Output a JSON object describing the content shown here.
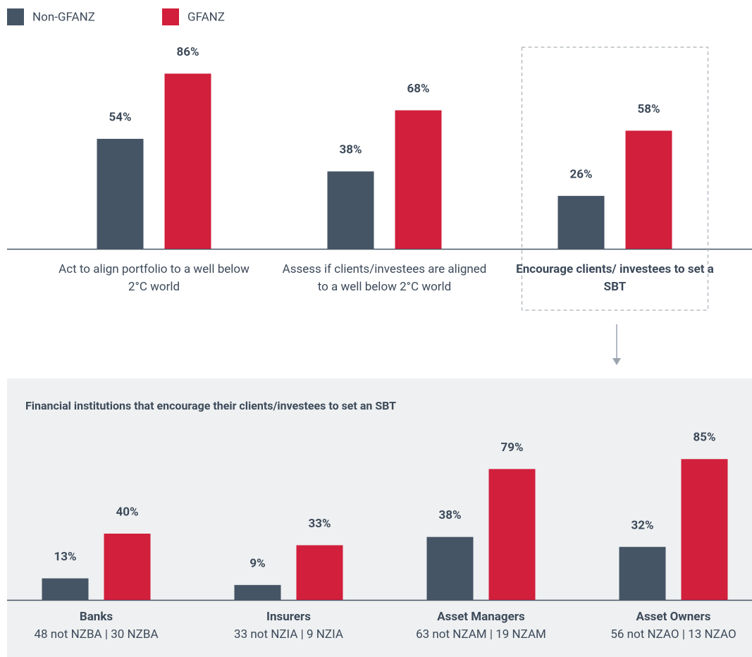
{
  "chart_data": [
    {
      "type": "bar",
      "categories": [
        "Act to align portfolio to a well below 2°C world",
        "Assess if clients/investees are aligned to a well below 2°C world",
        "Encourage clients/ investees to set a SBT"
      ],
      "series": [
        {
          "name": "Non-GFANZ",
          "color": "#465566",
          "values": [
            54,
            38,
            26
          ],
          "value_labels": [
            "54%",
            "38%",
            "26%"
          ]
        },
        {
          "name": "GFANZ",
          "color": "#d11f3c",
          "values": [
            86,
            68,
            58
          ],
          "value_labels": [
            "86%",
            "68%",
            "58%"
          ]
        }
      ],
      "ylim": [
        0,
        100
      ],
      "highlight_index": 2
    },
    {
      "type": "bar",
      "title": "Financial institutions that encourage their clients/investees to set an SBT",
      "categories": [
        "Banks",
        "Insurers",
        "Asset Managers",
        "Asset Owners"
      ],
      "category_details": [
        "48 not NZBA | 30 NZBA",
        "33 not NZIA | 9 NZIA",
        "63 not NZAM | 19 NZAM",
        "56 not NZAO | 13 NZAO"
      ],
      "series": [
        {
          "color": "#465566",
          "values": [
            13,
            9,
            38,
            32
          ],
          "value_labels": [
            "13%",
            "9%",
            "38%",
            "32%"
          ]
        },
        {
          "color": "#d11f3c",
          "values": [
            40,
            33,
            79,
            85
          ],
          "value_labels": [
            "40%",
            "33%",
            "79%",
            "85%"
          ]
        }
      ],
      "ylim": [
        0,
        100
      ]
    }
  ]
}
